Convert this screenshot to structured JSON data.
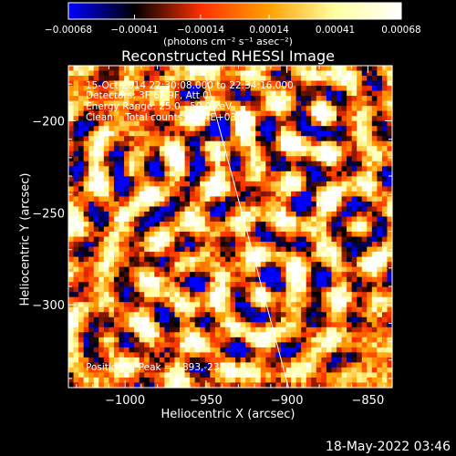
{
  "title": "Reconstructed RHESSI Image",
  "colorbar": {
    "tick_labels": [
      "-0.00068",
      "-0.00041",
      "-0.00014",
      "0.00014",
      "0.00041",
      "0.00068"
    ],
    "min": -0.00068,
    "max": 0.00068,
    "units_label": "(photons cm⁻² s⁻¹ asec⁻²)"
  },
  "annotations": {
    "line1": "15-Oct-2014 22:30:08.000 to 22:34:16.000",
    "line2": "Detectors: 3F 6F 9F, Att 0",
    "line3": "Energy Range: 25.0 - 50.0 keV",
    "line4": "Clean    Total counts: 2.64E+03",
    "peak": "Position of Peak = [-893,-233]"
  },
  "footer_timestamp": "18-May-2022 03:46",
  "chart_data": {
    "type": "heatmap",
    "title": "Reconstructed RHESSI Image",
    "xlabel": "Heliocentric X (arcsec)",
    "ylabel": "Heliocentric Y (arcsec)",
    "xlim": [
      -1035,
      -835
    ],
    "ylim": [
      -345,
      -170
    ],
    "xticks": [
      -1000,
      -950,
      -900,
      -850
    ],
    "xtick_labels": [
      "−1000",
      "−950",
      "−900",
      "−850"
    ],
    "yticks": [
      -200,
      -250,
      -300
    ],
    "ytick_labels": [
      "−200",
      "−250",
      "−300"
    ],
    "peak_position": [
      -893,
      -233
    ],
    "limb_line": [
      [
        -952,
        -170
      ],
      [
        -899,
        -345
      ]
    ],
    "colormap": [
      "#0000ff",
      "#000000",
      "#ff3000",
      "#ffa000",
      "#ffffa0",
      "#ffffff"
    ]
  }
}
